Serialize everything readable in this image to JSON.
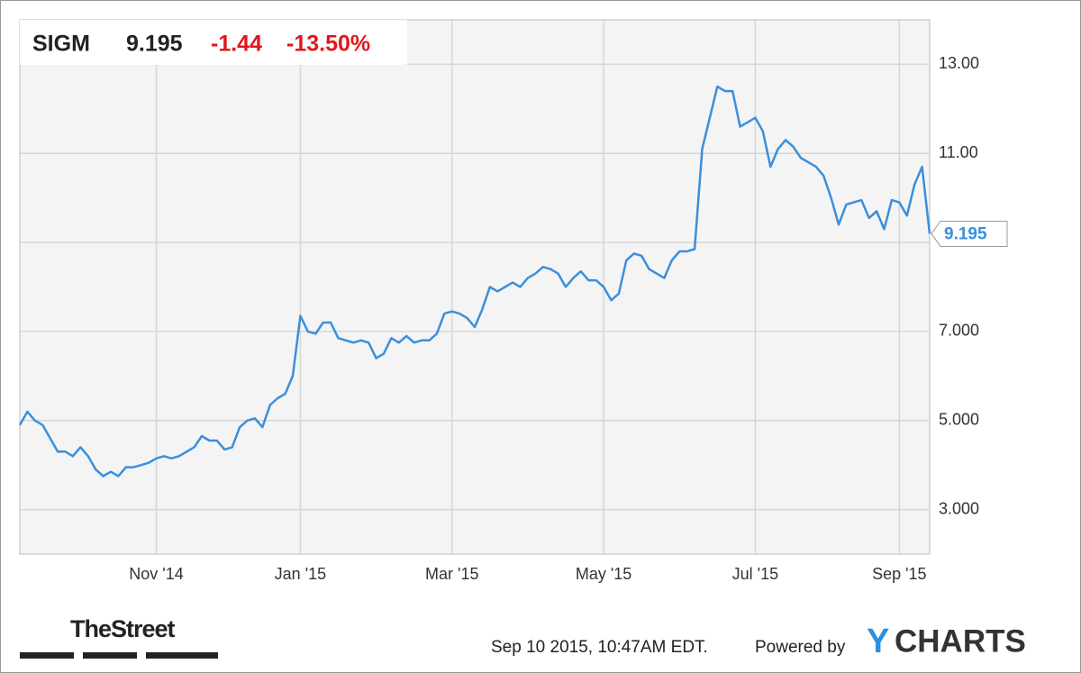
{
  "header": {
    "symbol": "SIGM",
    "price": "9.195",
    "change": "-1.44",
    "change_pct": "-13.50%"
  },
  "chart_data": {
    "type": "line",
    "categories": [
      null,
      null,
      null,
      null,
      null,
      null,
      null,
      null,
      null,
      null,
      null,
      null,
      null,
      null,
      null,
      null,
      null,
      null,
      "Nov '14",
      null,
      null,
      null,
      null,
      null,
      null,
      null,
      null,
      null,
      null,
      null,
      null,
      null,
      null,
      null,
      null,
      null,
      null,
      "Jan '15",
      null,
      null,
      null,
      null,
      null,
      null,
      null,
      null,
      null,
      null,
      null,
      null,
      null,
      null,
      null,
      null,
      null,
      null,
      null,
      "Mar '15",
      null,
      null,
      null,
      null,
      null,
      null,
      null,
      null,
      null,
      null,
      null,
      null,
      null,
      null,
      null,
      null,
      null,
      null,
      null,
      "May '15",
      null,
      null,
      null,
      null,
      null,
      null,
      null,
      null,
      null,
      null,
      null,
      null,
      null,
      null,
      null,
      null,
      null,
      null,
      null,
      "Jul '15",
      null,
      null,
      null,
      null,
      null,
      null,
      null,
      null,
      null,
      null,
      null,
      null,
      null,
      null,
      null,
      null,
      null,
      null,
      "Sep '15",
      null,
      null,
      null,
      null
    ],
    "series": [
      {
        "name": "SIGM",
        "color": "#3a8fdc",
        "values": [
          4.9,
          5.2,
          5.0,
          4.9,
          4.6,
          4.3,
          4.3,
          4.2,
          4.4,
          4.2,
          3.9,
          3.75,
          3.85,
          3.75,
          3.95,
          3.95,
          4.0,
          4.05,
          4.15,
          4.2,
          4.15,
          4.2,
          4.3,
          4.4,
          4.65,
          4.55,
          4.55,
          4.35,
          4.4,
          4.85,
          5.0,
          5.05,
          4.85,
          5.35,
          5.5,
          5.6,
          6.0,
          7.35,
          7.0,
          6.95,
          7.2,
          7.2,
          6.85,
          6.8,
          6.75,
          6.8,
          6.75,
          6.4,
          6.5,
          6.85,
          6.75,
          6.9,
          6.75,
          6.8,
          6.8,
          6.95,
          7.4,
          7.45,
          7.4,
          7.3,
          7.1,
          7.5,
          8.0,
          7.9,
          8.0,
          8.1,
          8.0,
          8.2,
          8.3,
          8.45,
          8.4,
          8.3,
          8.0,
          8.2,
          8.35,
          8.15,
          8.15,
          8.0,
          7.7,
          7.85,
          8.6,
          8.75,
          8.7,
          8.4,
          8.3,
          8.2,
          8.6,
          8.8,
          8.8,
          8.85,
          11.1,
          11.8,
          12.5,
          12.4,
          12.4,
          11.6,
          11.7,
          11.8,
          11.5,
          10.7,
          11.1,
          11.3,
          11.15,
          10.9,
          10.8,
          10.7,
          10.5,
          10.0,
          9.4,
          9.85,
          9.9,
          9.95,
          9.55,
          9.7,
          9.3,
          9.95,
          9.9,
          9.6,
          10.3,
          10.7,
          9.195
        ]
      }
    ],
    "ylim": [
      2,
      14
    ],
    "yticks": [
      {
        "value": 13,
        "label": "13.00"
      },
      {
        "value": 11,
        "label": "11.00"
      },
      {
        "value": 7,
        "label": "7.000"
      },
      {
        "value": 5,
        "label": "5.000"
      },
      {
        "value": 3,
        "label": "3.000"
      }
    ],
    "ygrid": [
      3,
      5,
      7,
      9,
      11,
      13
    ],
    "grid": true
  },
  "footer": {
    "brand": "TheStreet",
    "timestamp": "Sep 10 2015, 10:47AM EDT.",
    "powered": "Powered by",
    "logo_y": "Y",
    "logo_rest": "CHARTS"
  }
}
